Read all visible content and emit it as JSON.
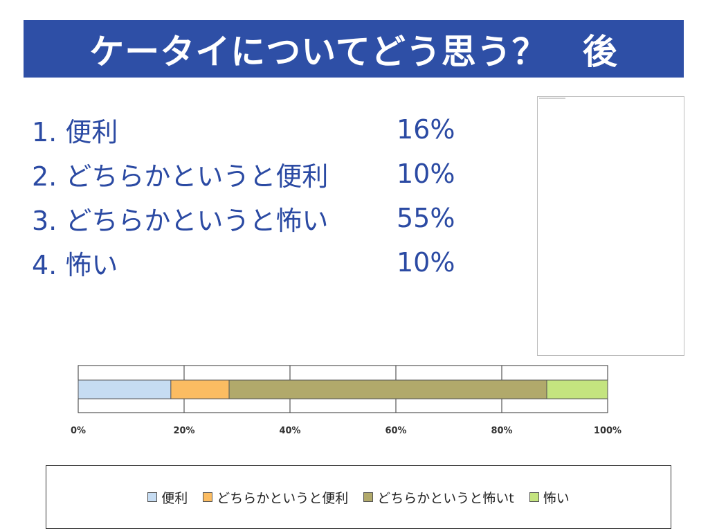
{
  "title": "ケータイについてどう思う？　後",
  "list": [
    {
      "label": "1. 便利",
      "value": "16%"
    },
    {
      "label": "2. どちらかというと便利",
      "value": "10%"
    },
    {
      "label": "3. どちらかというと怖い",
      "value": "55%"
    },
    {
      "label": "4. 怖い",
      "value": "10%"
    }
  ],
  "chart_data": {
    "type": "bar",
    "orientation": "horizontal-stacked-100",
    "series": [
      {
        "name": "便利",
        "value": 17.5,
        "color": "#c6dcf2"
      },
      {
        "name": "どちらかというと便利",
        "value": 11,
        "color": "#fbbc62"
      },
      {
        "name": "どちらかというと怖いt",
        "value": 60,
        "color": "#b1a96b"
      },
      {
        "name": "怖い",
        "value": 11.5,
        "color": "#c4e47f"
      }
    ],
    "xlim": [
      0,
      100
    ],
    "xticks": [
      "0%",
      "20%",
      "40%",
      "60%",
      "80%",
      "100%"
    ],
    "grid": true,
    "legend": "bottom"
  },
  "colors": {
    "title_bar": "#2e4fa6",
    "list_text": "#2b4aa3"
  }
}
